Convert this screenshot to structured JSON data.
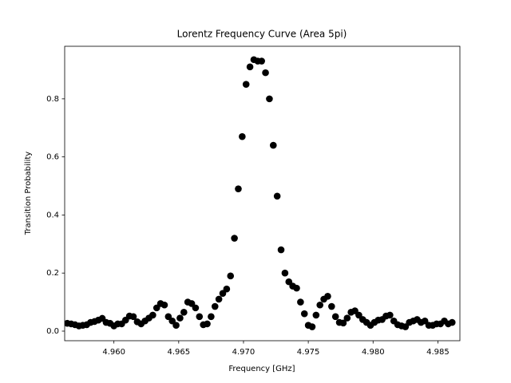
{
  "chart_data": {
    "type": "scatter",
    "title": "Lorentz Frequency Curve (Area 5pi)",
    "x_label": "Frequency [GHz]",
    "y_label": "Transition Probability",
    "color": "#000000",
    "x": [
      4.9564,
      4.9567,
      4.957,
      4.9573,
      4.9576,
      4.9579,
      4.9582,
      4.9585,
      4.9588,
      4.9591,
      4.9594,
      4.9597,
      4.96,
      4.9603,
      4.9606,
      4.9609,
      4.9612,
      4.9615,
      4.9618,
      4.9621,
      4.9624,
      4.9627,
      4.963,
      4.9633,
      4.9636,
      4.9639,
      4.9642,
      4.9645,
      4.9648,
      4.9651,
      4.9654,
      4.9657,
      4.966,
      4.9663,
      4.9666,
      4.9669,
      4.9672,
      4.9675,
      4.9678,
      4.9681,
      4.9684,
      4.9687,
      4.969,
      4.9693,
      4.9696,
      4.9699,
      4.9702,
      4.9705,
      4.9708,
      4.9711,
      4.9714,
      4.9717,
      4.972,
      4.9723,
      4.9726,
      4.9729,
      4.9732,
      4.9735,
      4.9738,
      4.9741,
      4.9744,
      4.9747,
      4.975,
      4.9753,
      4.9756,
      4.9759,
      4.9762,
      4.9765,
      4.9768,
      4.9771,
      4.9774,
      4.9777,
      4.978,
      4.9783,
      4.9786,
      4.9789,
      4.9792,
      4.9795,
      4.9798,
      4.9801,
      4.9804,
      4.9807,
      4.981,
      4.9813,
      4.9816,
      4.9819,
      4.9822,
      4.9825,
      4.9828,
      4.9831,
      4.9834,
      4.9837,
      4.984,
      4.9843,
      4.9846,
      4.9849,
      4.9852,
      4.9855,
      4.9858,
      4.9861
    ],
    "values": [
      0.027,
      0.025,
      0.022,
      0.018,
      0.02,
      0.022,
      0.03,
      0.033,
      0.038,
      0.044,
      0.03,
      0.027,
      0.018,
      0.025,
      0.025,
      0.038,
      0.052,
      0.05,
      0.032,
      0.025,
      0.035,
      0.045,
      0.055,
      0.08,
      0.095,
      0.09,
      0.05,
      0.035,
      0.02,
      0.045,
      0.065,
      0.1,
      0.095,
      0.08,
      0.05,
      0.022,
      0.025,
      0.05,
      0.085,
      0.11,
      0.13,
      0.145,
      0.19,
      0.32,
      0.49,
      0.67,
      0.85,
      0.91,
      0.935,
      0.93,
      0.93,
      0.89,
      0.8,
      0.64,
      0.465,
      0.28,
      0.2,
      0.17,
      0.155,
      0.148,
      0.1,
      0.06,
      0.02,
      0.015,
      0.055,
      0.09,
      0.11,
      0.12,
      0.085,
      0.05,
      0.03,
      0.028,
      0.045,
      0.065,
      0.07,
      0.055,
      0.04,
      0.03,
      0.02,
      0.03,
      0.038,
      0.04,
      0.052,
      0.055,
      0.035,
      0.022,
      0.018,
      0.015,
      0.03,
      0.035,
      0.04,
      0.03,
      0.035,
      0.02,
      0.02,
      0.025,
      0.025,
      0.035,
      0.025,
      0.03
    ],
    "xlim": [
      4.9562,
      4.9867
    ],
    "ylim": [
      -0.033,
      0.981
    ],
    "xticks": [
      {
        "value": 4.96,
        "label": "4.960"
      },
      {
        "value": 4.965,
        "label": "4.965"
      },
      {
        "value": 4.97,
        "label": "4.970"
      },
      {
        "value": 4.975,
        "label": "4.975"
      },
      {
        "value": 4.98,
        "label": "4.980"
      },
      {
        "value": 4.985,
        "label": "4.985"
      }
    ],
    "yticks": [
      {
        "value": 0,
        "label": "0.0"
      },
      0.2,
      0.4,
      0.6,
      0.8
    ],
    "grid": false
  }
}
